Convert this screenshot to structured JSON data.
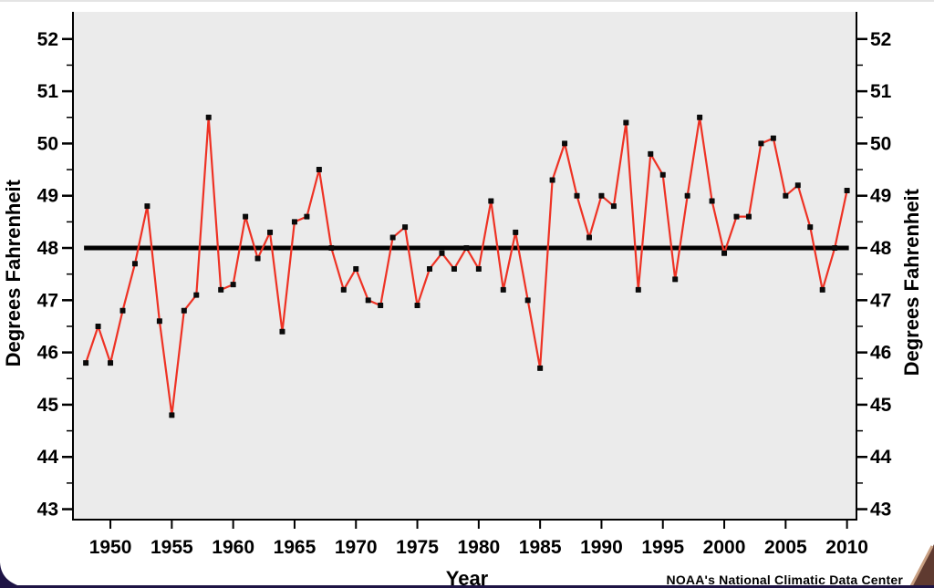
{
  "chart_data": {
    "type": "line",
    "title": "",
    "xlabel": "Year",
    "ylabel_left": "Degrees Fahrenheit",
    "ylabel_right": "Degrees Fahrenheit",
    "x": [
      1948,
      1949,
      1950,
      1951,
      1952,
      1953,
      1954,
      1955,
      1956,
      1957,
      1958,
      1959,
      1960,
      1961,
      1962,
      1963,
      1964,
      1965,
      1966,
      1967,
      1968,
      1969,
      1970,
      1971,
      1972,
      1973,
      1974,
      1975,
      1976,
      1977,
      1978,
      1979,
      1980,
      1981,
      1982,
      1983,
      1984,
      1985,
      1986,
      1987,
      1988,
      1989,
      1990,
      1991,
      1992,
      1993,
      1994,
      1995,
      1996,
      1997,
      1998,
      1999,
      2000,
      2001,
      2002,
      2003,
      2004,
      2005,
      2006,
      2007,
      2008,
      2009,
      2010
    ],
    "values": [
      45.8,
      46.5,
      45.8,
      46.8,
      47.7,
      48.8,
      46.6,
      44.8,
      46.8,
      47.1,
      50.5,
      47.2,
      47.3,
      48.6,
      47.8,
      48.3,
      46.4,
      48.5,
      48.6,
      49.5,
      48.0,
      47.2,
      47.6,
      47.0,
      46.9,
      48.2,
      48.4,
      46.9,
      47.6,
      47.9,
      47.6,
      48.0,
      47.6,
      48.9,
      47.2,
      48.3,
      47.0,
      45.7,
      49.3,
      50.0,
      49.0,
      48.2,
      49.0,
      48.8,
      50.4,
      47.2,
      49.8,
      49.4,
      47.4,
      49.0,
      50.5,
      48.9,
      47.9,
      48.6,
      48.6,
      50.0,
      50.1,
      49.0,
      49.2,
      48.4,
      47.2,
      48.0,
      49.1
    ],
    "reference_line": 48.0,
    "yticks": [
      43,
      44,
      45,
      46,
      47,
      48,
      49,
      50,
      51,
      52
    ],
    "xticks": [
      1950,
      1955,
      1960,
      1965,
      1970,
      1975,
      1980,
      1985,
      1990,
      1995,
      2000,
      2005,
      2010
    ],
    "ylim": [
      42.8,
      52.52
    ],
    "xlim": [
      1946.95,
      2010.77
    ],
    "y_minor_step": 0.5,
    "grid": false,
    "legend": "none",
    "line_color": "#ee3224",
    "marker_color": "#0a0a0a",
    "reference_color": "#000000",
    "plot_bg": "#ebebeb",
    "axis_color": "#000000"
  },
  "footer": {
    "credit": "NOAA's National Climatic Data Center"
  },
  "decorations": {
    "top_strip_color": "#e4e4e4",
    "bottom_strip_color": "#1e1445",
    "corner_navy_color": "#1e1445",
    "corner_brown_dark": "#5f3a30",
    "corner_brown_light": "#c9a083"
  }
}
